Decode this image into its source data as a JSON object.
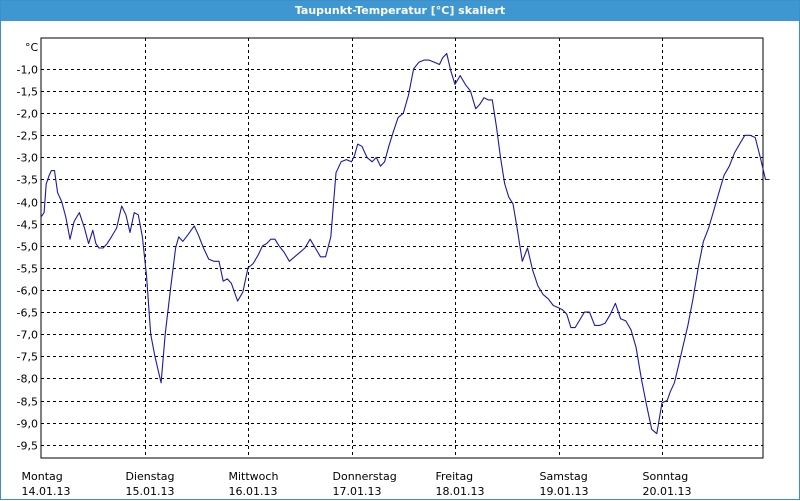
{
  "window": {
    "title": "Taupunkt-Temperatur [°C] skaliert"
  },
  "chart_data": {
    "type": "line",
    "title": "Taupunkt-Temperatur [°C] skaliert",
    "ylabel": "°C",
    "ylim": [
      -9.8,
      -0.3
    ],
    "yticks": [
      -1.0,
      -1.5,
      -2.0,
      -2.5,
      -3.0,
      -3.5,
      -4.0,
      -4.5,
      -5.0,
      -5.5,
      -6.0,
      -6.5,
      -7.0,
      -7.5,
      -8.0,
      -8.5,
      -9.0,
      -9.5
    ],
    "ytick_labels": [
      "-1,0",
      "-1,5",
      "-2,0",
      "-2,5",
      "-3,0",
      "-3,5",
      "-4,0",
      "-4,5",
      "-5,0",
      "-5,5",
      "-6,0",
      "-6,5",
      "-7,0",
      "-7,5",
      "-8,0",
      "-8,5",
      "-9,0",
      "-9,5"
    ],
    "xlim": [
      0,
      7.05
    ],
    "day_labels": [
      {
        "day": "Montag",
        "date": "14.01.13"
      },
      {
        "day": "Dienstag",
        "date": "15.01.13"
      },
      {
        "day": "Mittwoch",
        "date": "16.01.13"
      },
      {
        "day": "Donnerstag",
        "date": "17.01.13"
      },
      {
        "day": "Freitag",
        "date": "18.01.13"
      },
      {
        "day": "Samstag",
        "date": "19.01.13"
      },
      {
        "day": "Sonntag",
        "date": "20.01.13"
      }
    ],
    "grid": true,
    "line_color": "#1a1aa6",
    "series": [
      {
        "x": [
          0,
          0.03,
          0.05,
          0.08,
          0.1,
          0.13,
          0.16,
          0.2,
          0.24,
          0.28,
          0.32,
          0.37,
          0.42,
          0.46,
          0.5,
          0.53,
          0.56,
          0.6,
          0.64,
          0.68,
          0.73,
          0.78,
          0.82,
          0.86,
          0.9,
          0.94,
          0.98,
          1.02,
          1.06,
          1.1,
          1.13,
          1.16,
          1.2,
          1.25,
          1.3,
          1.33,
          1.37,
          1.42,
          1.48,
          1.52,
          1.57,
          1.62,
          1.67,
          1.72,
          1.76,
          1.8,
          1.84,
          1.9,
          1.95,
          2.0,
          2.05,
          2.1,
          2.14,
          2.18,
          2.22,
          2.26,
          2.3,
          2.35,
          2.4,
          2.45,
          2.5,
          2.55,
          2.6,
          2.65,
          2.7,
          2.75,
          2.8,
          2.85,
          2.9,
          2.95,
          3.0,
          3.03,
          3.06,
          3.1,
          3.15,
          3.2,
          3.24,
          3.28,
          3.32,
          3.36,
          3.4,
          3.45,
          3.5,
          3.55,
          3.6,
          3.65,
          3.7,
          3.75,
          3.8,
          3.85,
          3.88,
          3.92,
          3.96,
          4.0,
          4.05,
          4.1,
          4.15,
          4.2,
          4.24,
          4.28,
          4.32,
          4.36,
          4.4,
          4.44,
          4.48,
          4.52,
          4.56,
          4.6,
          4.65,
          4.7,
          4.75,
          4.8,
          4.85,
          4.9,
          4.95,
          5.0,
          5.04,
          5.08,
          5.12,
          5.16,
          5.2,
          5.25,
          5.3,
          5.35,
          5.4,
          5.45,
          5.5,
          5.55,
          5.6,
          5.65,
          5.7,
          5.75,
          5.8,
          5.85,
          5.9,
          5.95,
          6.0,
          6.05,
          6.08,
          6.12,
          6.16,
          6.2,
          6.25,
          6.3,
          6.35,
          6.4,
          6.45,
          6.5,
          6.55,
          6.6,
          6.65,
          6.7,
          6.75,
          6.8,
          6.85,
          6.9,
          6.95,
          7.0,
          7.04
        ],
        "y": [
          -4.35,
          -4.25,
          -3.6,
          -3.4,
          -3.3,
          -3.3,
          -3.8,
          -4.0,
          -4.35,
          -4.85,
          -4.45,
          -4.25,
          -4.6,
          -4.95,
          -4.65,
          -4.95,
          -5.05,
          -5.05,
          -4.95,
          -4.8,
          -4.6,
          -4.1,
          -4.3,
          -4.7,
          -4.25,
          -4.3,
          -4.8,
          -5.7,
          -7.0,
          -7.5,
          -7.8,
          -8.1,
          -7.0,
          -6.0,
          -5.05,
          -4.8,
          -4.9,
          -4.75,
          -4.55,
          -4.75,
          -5.05,
          -5.3,
          -5.35,
          -5.35,
          -5.8,
          -5.75,
          -5.85,
          -6.25,
          -6.05,
          -5.5,
          -5.4,
          -5.2,
          -5.0,
          -4.95,
          -4.85,
          -4.85,
          -5.0,
          -5.15,
          -5.35,
          -5.25,
          -5.15,
          -5.05,
          -4.85,
          -5.05,
          -5.25,
          -5.25,
          -4.8,
          -3.35,
          -3.1,
          -3.05,
          -3.1,
          -2.95,
          -2.7,
          -2.75,
          -3.0,
          -3.1,
          -3.0,
          -3.2,
          -3.1,
          -2.75,
          -2.45,
          -2.1,
          -2.0,
          -1.6,
          -1.0,
          -0.85,
          -0.8,
          -0.8,
          -0.85,
          -0.9,
          -0.75,
          -0.65,
          -1.05,
          -1.35,
          -1.15,
          -1.35,
          -1.5,
          -1.9,
          -1.8,
          -1.65,
          -1.7,
          -1.7,
          -2.3,
          -3.0,
          -3.6,
          -3.9,
          -4.05,
          -4.6,
          -5.35,
          -5.05,
          -5.55,
          -5.9,
          -6.1,
          -6.2,
          -6.35,
          -6.4,
          -6.45,
          -6.55,
          -6.85,
          -6.85,
          -6.7,
          -6.5,
          -6.5,
          -6.8,
          -6.8,
          -6.75,
          -6.55,
          -6.3,
          -6.65,
          -6.7,
          -6.9,
          -7.3,
          -8.0,
          -8.6,
          -9.15,
          -9.25,
          -8.55,
          -8.5,
          -8.3,
          -8.1,
          -7.7,
          -7.3,
          -6.8,
          -6.2,
          -5.5,
          -4.9,
          -4.6,
          -4.2,
          -3.8,
          -3.4,
          -3.2,
          -2.9,
          -2.7,
          -2.5,
          -2.5,
          -2.55,
          -3.0,
          -3.5,
          -3.5
        ]
      }
    ]
  }
}
